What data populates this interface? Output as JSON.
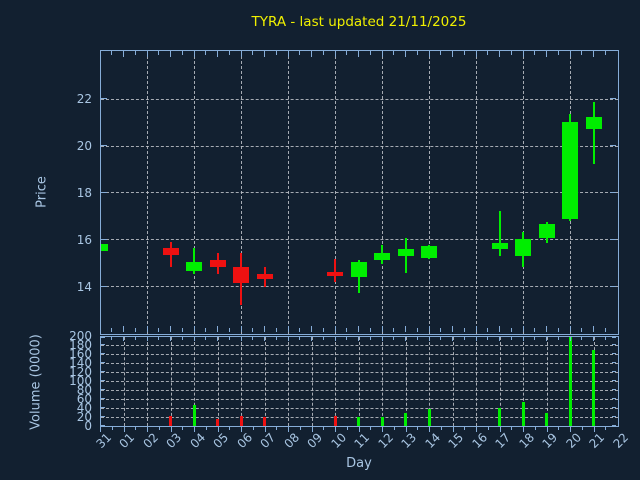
{
  "title": "TYRA - last updated 21/11/2025",
  "chart_data": {
    "type": "candlestick",
    "xlabel": "Day",
    "x_labels": [
      "31",
      "01",
      "02",
      "03",
      "04",
      "05",
      "06",
      "07",
      "08",
      "09",
      "10",
      "11",
      "12",
      "13",
      "14",
      "15",
      "16",
      "17",
      "18",
      "19",
      "20",
      "21",
      "22"
    ],
    "price_axis": {
      "label": "Price",
      "ticks": [
        14,
        16,
        18,
        20,
        22
      ],
      "range": [
        12.0,
        24.05
      ],
      "grid_day_indices": [
        2,
        4,
        6,
        8,
        10,
        12,
        14,
        16,
        18,
        20
      ]
    },
    "volume_axis": {
      "label": "Volume (0000)",
      "ticks": [
        0,
        20,
        40,
        60,
        80,
        100,
        120,
        140,
        160,
        180,
        200
      ],
      "range": [
        0,
        197.5
      ],
      "grid_day_indices": [
        1,
        2,
        3,
        4,
        5,
        6,
        7,
        8,
        9,
        10,
        11,
        12,
        13,
        14,
        15,
        16,
        17,
        18,
        19,
        20,
        21
      ]
    },
    "candles": [
      {
        "day": "31",
        "open": 15.5,
        "high": 15.85,
        "low": 15.45,
        "close": 15.8,
        "direction": "up",
        "volume": 0
      },
      {
        "day": "03",
        "open": 15.65,
        "high": 15.9,
        "low": 14.8,
        "close": 15.35,
        "direction": "down",
        "volume": 22
      },
      {
        "day": "04",
        "open": 14.65,
        "high": 15.65,
        "low": 14.5,
        "close": 15.05,
        "direction": "up",
        "volume": 47
      },
      {
        "day": "05",
        "open": 15.1,
        "high": 15.4,
        "low": 14.5,
        "close": 14.8,
        "direction": "down",
        "volume": 16
      },
      {
        "day": "06",
        "open": 14.8,
        "high": 15.4,
        "low": 13.2,
        "close": 14.15,
        "direction": "down",
        "volume": 22
      },
      {
        "day": "07",
        "open": 14.5,
        "high": 14.8,
        "low": 13.95,
        "close": 14.3,
        "direction": "down",
        "volume": 20
      },
      {
        "day": "10",
        "open": 14.6,
        "high": 15.15,
        "low": 14.2,
        "close": 14.45,
        "direction": "down",
        "volume": 22
      },
      {
        "day": "11",
        "open": 14.4,
        "high": 15.1,
        "low": 13.7,
        "close": 15.05,
        "direction": "up",
        "volume": 20
      },
      {
        "day": "12",
        "open": 15.1,
        "high": 15.75,
        "low": 14.95,
        "close": 15.4,
        "direction": "up",
        "volume": 20
      },
      {
        "day": "13",
        "open": 15.3,
        "high": 16.05,
        "low": 14.55,
        "close": 15.6,
        "direction": "up",
        "volume": 29
      },
      {
        "day": "14",
        "open": 15.2,
        "high": 15.75,
        "low": 15.15,
        "close": 15.7,
        "direction": "up",
        "volume": 38
      },
      {
        "day": "17",
        "open": 15.6,
        "high": 17.2,
        "low": 15.3,
        "close": 15.85,
        "direction": "up",
        "volume": 40
      },
      {
        "day": "18",
        "open": 15.3,
        "high": 16.3,
        "low": 14.8,
        "close": 16.0,
        "direction": "up",
        "volume": 54
      },
      {
        "day": "19",
        "open": 16.05,
        "high": 16.75,
        "low": 15.85,
        "close": 16.65,
        "direction": "up",
        "volume": 29
      },
      {
        "day": "20",
        "open": 16.85,
        "high": 21.35,
        "low": 16.8,
        "close": 21.0,
        "direction": "up",
        "volume": 197
      },
      {
        "day": "21",
        "open": 20.7,
        "high": 21.85,
        "low": 19.2,
        "close": 21.2,
        "direction": "up",
        "volume": 169
      }
    ],
    "colors": {
      "up": "#00ee00",
      "down": "#ee1111",
      "background": "#122030",
      "title": "#f0f000",
      "axis_text": "#a9c6e3",
      "spine": "#86add8",
      "grid": "#c0c4ca"
    }
  }
}
